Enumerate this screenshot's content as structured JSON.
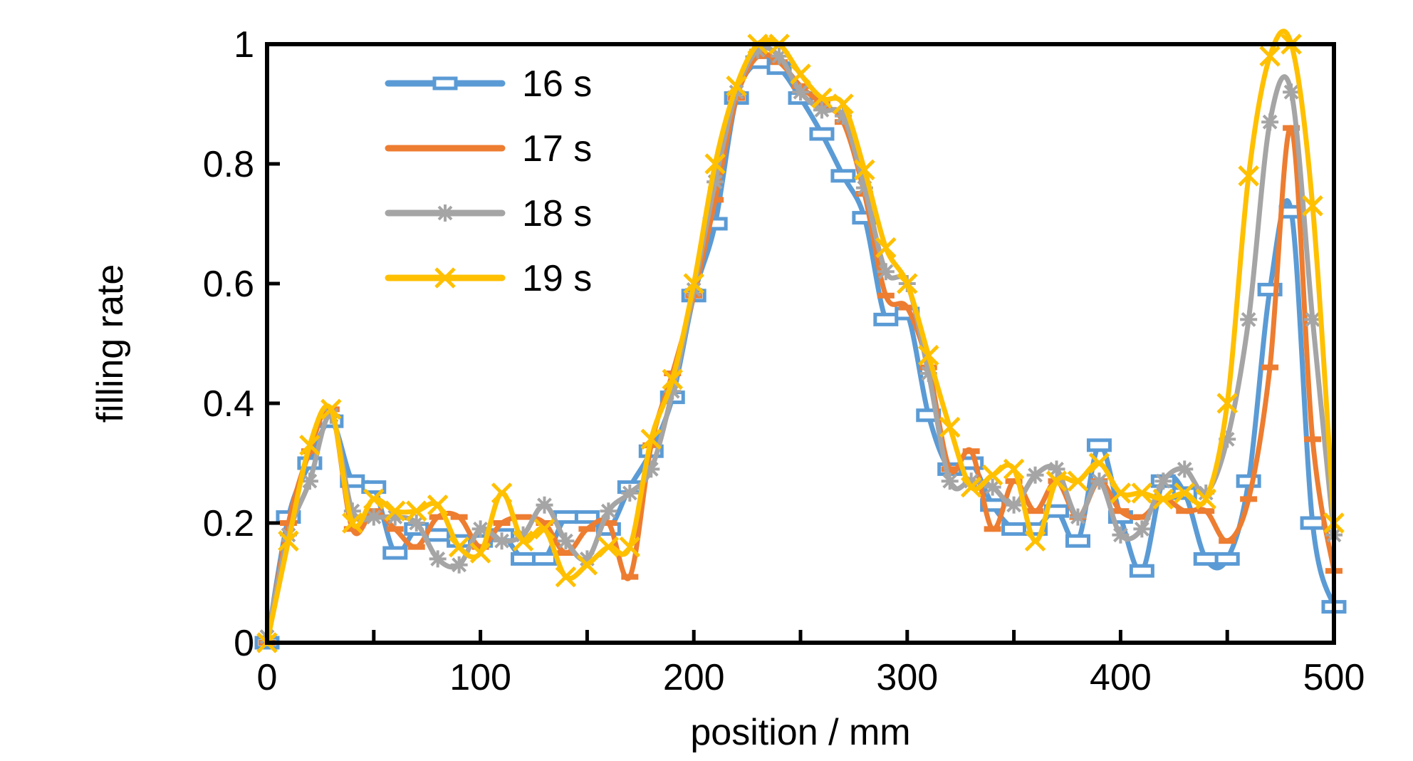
{
  "chart_data": {
    "type": "line",
    "title": "",
    "xlabel": "position / mm",
    "ylabel": "filling rate",
    "xlim": [
      0,
      500
    ],
    "ylim": [
      0,
      1
    ],
    "xticks": [
      0,
      100,
      200,
      300,
      400,
      500
    ],
    "yticks": [
      0,
      0.2,
      0.4,
      0.6,
      0.8,
      1
    ],
    "ytick_labels": [
      "0",
      "0.2",
      "0.4",
      "0.6",
      "0.8",
      "1"
    ],
    "grid": false,
    "legend_position": "top-left",
    "series": [
      {
        "name": "16 s",
        "color": "#5B9BD5",
        "marker": "bar",
        "x": [
          0,
          10,
          20,
          30,
          40,
          50,
          60,
          70,
          80,
          90,
          100,
          110,
          120,
          130,
          140,
          150,
          160,
          170,
          180,
          190,
          200,
          210,
          220,
          230,
          240,
          250,
          260,
          270,
          280,
          290,
          300,
          310,
          320,
          330,
          340,
          350,
          360,
          370,
          380,
          390,
          400,
          410,
          420,
          430,
          440,
          450,
          460,
          470,
          480,
          490,
          500
        ],
        "y": [
          0,
          0.21,
          0.3,
          0.37,
          0.27,
          0.26,
          0.15,
          0.19,
          0.18,
          0.17,
          0.17,
          0.18,
          0.14,
          0.14,
          0.21,
          0.21,
          0.19,
          0.26,
          0.32,
          0.41,
          0.58,
          0.7,
          0.91,
          0.97,
          0.96,
          0.91,
          0.85,
          0.78,
          0.71,
          0.54,
          0.55,
          0.38,
          0.29,
          0.3,
          0.23,
          0.19,
          0.19,
          0.22,
          0.17,
          0.33,
          0.21,
          0.12,
          0.27,
          0.25,
          0.14,
          0.14,
          0.27,
          0.59,
          0.72,
          0.2,
          0.06
        ]
      },
      {
        "name": "17 s",
        "color": "#ED7D31",
        "marker": "dash",
        "x": [
          0,
          10,
          20,
          30,
          40,
          50,
          60,
          70,
          80,
          90,
          100,
          110,
          120,
          130,
          140,
          150,
          160,
          170,
          180,
          190,
          200,
          210,
          220,
          230,
          240,
          250,
          260,
          270,
          280,
          290,
          300,
          310,
          320,
          330,
          340,
          350,
          360,
          370,
          380,
          390,
          400,
          410,
          420,
          430,
          440,
          450,
          460,
          470,
          480,
          490,
          500
        ],
        "y": [
          0,
          0.2,
          0.32,
          0.39,
          0.19,
          0.22,
          0.19,
          0.16,
          0.21,
          0.21,
          0.16,
          0.2,
          0.21,
          0.2,
          0.15,
          0.19,
          0.2,
          0.11,
          0.33,
          0.45,
          0.58,
          0.74,
          0.91,
          0.98,
          0.97,
          0.93,
          0.9,
          0.87,
          0.75,
          0.58,
          0.56,
          0.46,
          0.29,
          0.32,
          0.19,
          0.27,
          0.22,
          0.27,
          0.21,
          0.27,
          0.22,
          0.21,
          0.24,
          0.22,
          0.22,
          0.17,
          0.24,
          0.46,
          0.86,
          0.34,
          0.12
        ]
      },
      {
        "name": "18 s",
        "color": "#A5A5A5",
        "marker": "asterisk",
        "x": [
          0,
          10,
          20,
          30,
          40,
          50,
          60,
          70,
          80,
          90,
          100,
          110,
          120,
          130,
          140,
          150,
          160,
          170,
          180,
          190,
          200,
          210,
          220,
          230,
          240,
          250,
          260,
          270,
          280,
          290,
          300,
          310,
          320,
          330,
          340,
          350,
          360,
          370,
          380,
          390,
          400,
          410,
          420,
          430,
          440,
          450,
          460,
          470,
          480,
          490,
          500
        ],
        "y": [
          0.01,
          0.18,
          0.27,
          0.38,
          0.22,
          0.21,
          0.21,
          0.2,
          0.14,
          0.13,
          0.19,
          0.17,
          0.18,
          0.23,
          0.17,
          0.14,
          0.22,
          0.25,
          0.29,
          0.42,
          0.59,
          0.77,
          0.92,
          0.99,
          0.98,
          0.92,
          0.89,
          0.88,
          0.76,
          0.62,
          0.6,
          0.45,
          0.27,
          0.27,
          0.26,
          0.23,
          0.28,
          0.29,
          0.21,
          0.27,
          0.18,
          0.19,
          0.27,
          0.29,
          0.25,
          0.34,
          0.54,
          0.87,
          0.92,
          0.54,
          0.18
        ]
      },
      {
        "name": "19 s",
        "color": "#FFC000",
        "marker": "x",
        "x": [
          0,
          10,
          20,
          30,
          40,
          50,
          60,
          70,
          80,
          90,
          100,
          110,
          120,
          130,
          140,
          150,
          160,
          170,
          180,
          190,
          200,
          210,
          220,
          230,
          240,
          250,
          260,
          270,
          280,
          290,
          300,
          310,
          320,
          330,
          340,
          350,
          360,
          370,
          380,
          390,
          400,
          410,
          420,
          430,
          440,
          450,
          460,
          470,
          480,
          490,
          500
        ],
        "y": [
          0,
          0.17,
          0.33,
          0.39,
          0.2,
          0.24,
          0.22,
          0.22,
          0.23,
          0.16,
          0.15,
          0.25,
          0.17,
          0.19,
          0.11,
          0.13,
          0.16,
          0.16,
          0.34,
          0.44,
          0.6,
          0.8,
          0.93,
          1.0,
          1.0,
          0.95,
          0.91,
          0.9,
          0.79,
          0.66,
          0.6,
          0.48,
          0.36,
          0.26,
          0.28,
          0.29,
          0.17,
          0.27,
          0.27,
          0.3,
          0.25,
          0.25,
          0.24,
          0.25,
          0.24,
          0.4,
          0.78,
          0.98,
          1.0,
          0.73,
          0.2
        ]
      }
    ]
  }
}
